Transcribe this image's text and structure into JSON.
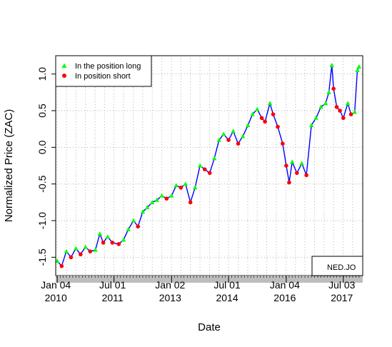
{
  "chart_data": {
    "type": "line",
    "title": "",
    "xlabel": "Date",
    "ylabel": "Normalized Price (ZAC)",
    "instrument": "NED.JO",
    "ylim": [
      -1.75,
      1.25
    ],
    "y_ticks": [
      -1.5,
      -1.0,
      -0.5,
      0.0,
      0.5,
      1.0
    ],
    "y_tick_labels": [
      "-1.5",
      "-1.0",
      "-0.5",
      "0.0",
      "0.5",
      "1.0"
    ],
    "xlim": [
      "2009-12-20",
      "2018-01-05"
    ],
    "x_ticks": [
      {
        "date": "2010-01-04",
        "line1": "Jan 04",
        "line2": "2010"
      },
      {
        "date": "2011-07-01",
        "line1": "Jul 01",
        "line2": "2011"
      },
      {
        "date": "2013-01-02",
        "line1": "Jan 02",
        "line2": "2013"
      },
      {
        "date": "2014-07-01",
        "line1": "Jul 01",
        "line2": "2014"
      },
      {
        "date": "2016-01-04",
        "line1": "Jan 04",
        "line2": "2016"
      },
      {
        "date": "2017-07-03",
        "line1": "Jul 03",
        "line2": "2017"
      }
    ],
    "grid": true,
    "legend_position": "top-left",
    "legend": [
      {
        "label": "In the position long",
        "color": "#00ff00",
        "marker": "triangle"
      },
      {
        "label": "In position short",
        "color": "#ff0000",
        "marker": "circle"
      }
    ],
    "series": [
      {
        "name": "price",
        "color": "#0000ff",
        "points": [
          [
            "2010-01-04",
            -1.55
          ],
          [
            "2010-02-15",
            -1.62
          ],
          [
            "2010-04-01",
            -1.42
          ],
          [
            "2010-05-15",
            -1.5
          ],
          [
            "2010-07-01",
            -1.38
          ],
          [
            "2010-08-15",
            -1.46
          ],
          [
            "2010-10-01",
            -1.36
          ],
          [
            "2010-11-15",
            -1.42
          ],
          [
            "2011-01-04",
            -1.4
          ],
          [
            "2011-02-15",
            -1.18
          ],
          [
            "2011-03-20",
            -1.3
          ],
          [
            "2011-05-01",
            -1.22
          ],
          [
            "2011-06-15",
            -1.3
          ],
          [
            "2011-08-15",
            -1.32
          ],
          [
            "2011-10-01",
            -1.26
          ],
          [
            "2011-11-15",
            -1.12
          ],
          [
            "2012-01-04",
            -1.0
          ],
          [
            "2012-02-15",
            -1.08
          ],
          [
            "2012-04-01",
            -0.88
          ],
          [
            "2012-05-15",
            -0.82
          ],
          [
            "2012-07-01",
            -0.75
          ],
          [
            "2012-08-15",
            -0.72
          ],
          [
            "2012-10-01",
            -0.66
          ],
          [
            "2012-11-15",
            -0.7
          ],
          [
            "2013-01-02",
            -0.66
          ],
          [
            "2013-02-15",
            -0.52
          ],
          [
            "2013-04-01",
            -0.55
          ],
          [
            "2013-05-15",
            -0.5
          ],
          [
            "2013-07-01",
            -0.75
          ],
          [
            "2013-08-15",
            -0.55
          ],
          [
            "2013-10-01",
            -0.25
          ],
          [
            "2013-11-15",
            -0.3
          ],
          [
            "2014-01-02",
            -0.35
          ],
          [
            "2014-02-15",
            -0.15
          ],
          [
            "2014-04-01",
            0.1
          ],
          [
            "2014-05-15",
            0.18
          ],
          [
            "2014-07-01",
            0.1
          ],
          [
            "2014-08-15",
            0.22
          ],
          [
            "2014-10-01",
            0.05
          ],
          [
            "2014-11-15",
            0.15
          ],
          [
            "2015-01-02",
            0.3
          ],
          [
            "2015-02-15",
            0.45
          ],
          [
            "2015-04-01",
            0.52
          ],
          [
            "2015-05-15",
            0.4
          ],
          [
            "2015-06-15",
            0.35
          ],
          [
            "2015-08-01",
            0.6
          ],
          [
            "2015-09-01",
            0.45
          ],
          [
            "2015-10-15",
            0.28
          ],
          [
            "2015-12-01",
            0.05
          ],
          [
            "2016-01-04",
            -0.25
          ],
          [
            "2016-02-01",
            -0.48
          ],
          [
            "2016-03-01",
            -0.2
          ],
          [
            "2016-04-15",
            -0.35
          ],
          [
            "2016-06-01",
            -0.22
          ],
          [
            "2016-07-15",
            -0.38
          ],
          [
            "2016-09-01",
            0.3
          ],
          [
            "2016-10-15",
            0.4
          ],
          [
            "2016-12-01",
            0.55
          ],
          [
            "2017-01-15",
            0.6
          ],
          [
            "2017-02-15",
            0.75
          ],
          [
            "2017-03-15",
            1.12
          ],
          [
            "2017-04-01",
            0.8
          ],
          [
            "2017-05-01",
            0.55
          ],
          [
            "2017-06-01",
            0.5
          ],
          [
            "2017-07-03",
            0.4
          ],
          [
            "2017-08-15",
            0.6
          ],
          [
            "2017-09-15",
            0.45
          ],
          [
            "2017-10-20",
            0.48
          ],
          [
            "2017-11-15",
            1.05
          ],
          [
            "2017-12-01",
            1.1
          ]
        ]
      }
    ]
  }
}
